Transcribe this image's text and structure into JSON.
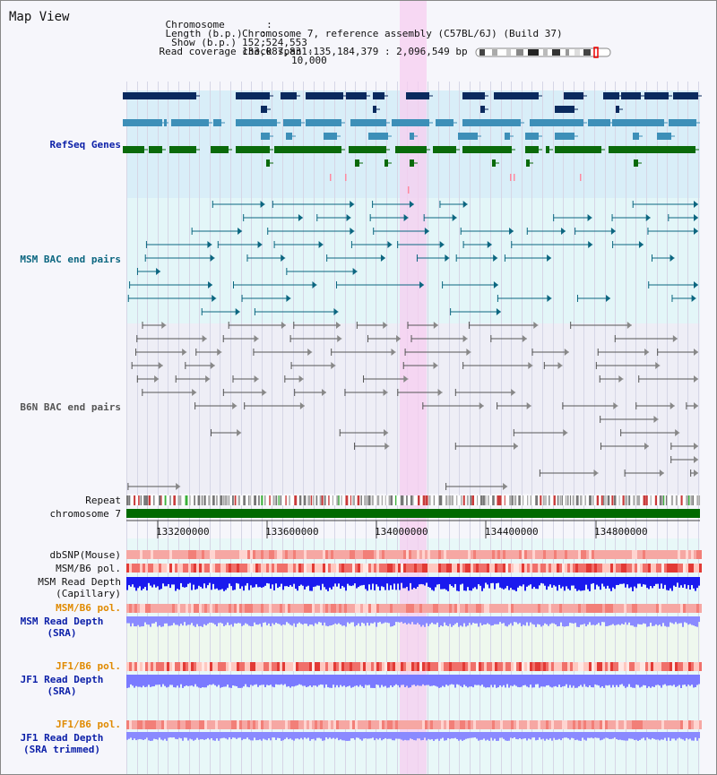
{
  "header": {
    "view_title": "Map View",
    "rows": [
      {
        "label": "Chromosome       :",
        "value": "Chromosome 7, reference assembly (C57BL/6J) (Build 37)"
      },
      {
        "label": "Length (b.p.)   :",
        "value": "152,524,553"
      },
      {
        "label": " Show (b.p.)    :",
        "value": "133,087,831-135,184,379 : 2,096,549 bp"
      },
      {
        "label": "Read coverage check span :",
        "value": "10,000"
      }
    ]
  },
  "tracks": {
    "refseq": {
      "label": "RefSeq Genes",
      "color": "#0b1fa8"
    },
    "msm_bac": {
      "label": "MSM BAC end pairs",
      "color": "#0b6680"
    },
    "b6n_bac": {
      "label": "B6N BAC end pairs",
      "color": "#555555"
    },
    "repeat": {
      "label": "Repeat"
    },
    "chrom": {
      "label": "chromosome 7",
      "color": "#006400"
    },
    "dbsnp": {
      "label": "dbSNP(Mouse)"
    },
    "msm_pol": {
      "label": "MSM/B6 pol."
    },
    "msm_depth_cap": {
      "label": "MSM Read Depth\n(Capillary)"
    },
    "msm_pol2": {
      "label": "MSM/B6 pol.",
      "color": "#e08a00"
    },
    "msm_depth_sra": {
      "label": "MSM Read Depth\n(SRA)",
      "color": "#0b1fa8"
    },
    "jf1_pol": {
      "label": "JF1/B6 pol.",
      "color": "#e08a00"
    },
    "jf1_depth_sra": {
      "label": "JF1 Read Depth\n(SRA)",
      "color": "#0b1fa8"
    },
    "jf1_pol2": {
      "label": "JF1/B6 pol.",
      "color": "#e08a00"
    },
    "jf1_depth_trim": {
      "label": "JF1 Read Depth\n(SRA trimmed)",
      "color": "#0b1fa8"
    }
  },
  "axis": {
    "ticks": [
      "133200000",
      "133600000",
      "134000000",
      "134400000",
      "134800000"
    ]
  },
  "colors": {
    "refseq_bg": "#d8eef8",
    "msm_bg": "#e4f7fb",
    "gene_dark": "#0a2a5e",
    "gene_mid": "#3d8fb8",
    "gene_green": "#0a6a0a",
    "highlight": "#f7cdf0"
  }
}
